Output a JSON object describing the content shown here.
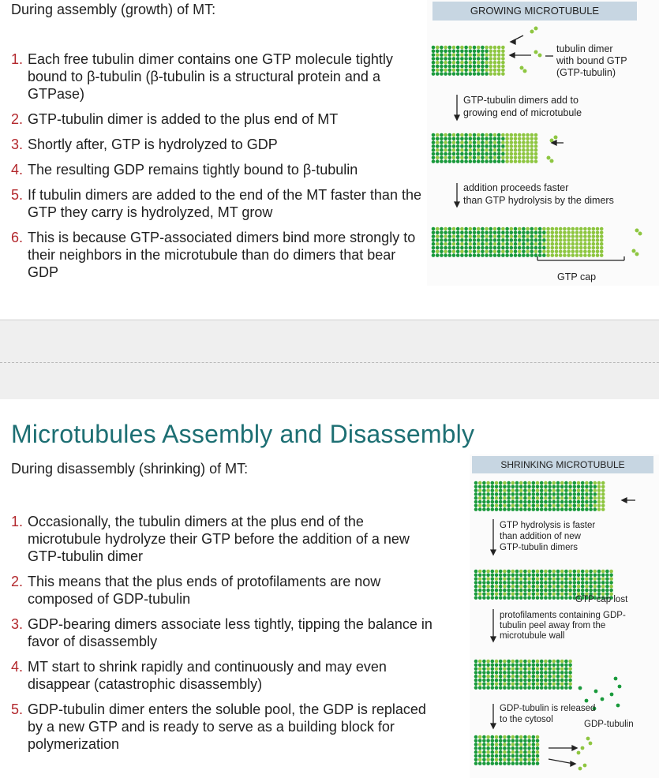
{
  "top_slide": {
    "lead": "During assembly (growth) of MT:",
    "items": [
      {
        "num": "1.",
        "text": "Each free tubulin dimer contains one GTP molecule tightly bound to β-tubulin (β-tubulin is a structural protein and a GTPase)"
      },
      {
        "num": "2.",
        "text": "GTP-tubulin dimer is added to the plus end of MT"
      },
      {
        "num": "3.",
        "text": "Shortly after, GTP is hydrolyzed to GDP"
      },
      {
        "num": "4.",
        "text": "The resulting GDP remains tightly bound to β-tubulin"
      },
      {
        "num": "5.",
        "text": "If tubulin dimers are added to the end of the MT faster than the GTP they carry is hydrolyzed, MT grow"
      },
      {
        "num": "6.",
        "text": "This is because GTP-associated dimers bind more strongly to their neighbors in the microtubule than do dimers that bear GDP"
      }
    ],
    "figure": {
      "header": "GROWING MICROTUBULE",
      "dimer_label_1": "tubulin dimer",
      "dimer_label_2": "with bound GTP",
      "dimer_label_3": "(GTP-tubulin)",
      "step1_line1": "GTP-tubulin dimers add to",
      "step1_line2": "growing end of microtubule",
      "step2_line1": "addition proceeds faster",
      "step2_line2": "than GTP hydrolysis by the dimers",
      "cap_label": "GTP cap"
    }
  },
  "bottom_slide": {
    "title": "Microtubules Assembly and Disassembly",
    "lead": "During disassembly (shrinking) of MT:",
    "items": [
      {
        "num": "1.",
        "text": "Occasionally, the tubulin dimers at the plus end of the microtubule hydrolyze their GTP before the addition of a new GTP-tubulin dimer"
      },
      {
        "num": "2.",
        "text": "This means that the plus ends of protofilaments are now composed of GDP-tubulin"
      },
      {
        "num": "3.",
        "text": "GDP-bearing dimers associate less tightly, tipping the balance in favor of disassembly"
      },
      {
        "num": "4.",
        "text": "MT start to shrink rapidly and continuously and may even disappear (catastrophic disassembly)"
      },
      {
        "num": "5.",
        "text": "GDP-tubulin dimer enters the soluble pool, the GDP is replaced by a new GTP and is ready to serve as a building block for polymerization"
      }
    ],
    "figure": {
      "header": "SHRINKING MICROTUBULE",
      "step1_line1": "GTP hydrolysis is faster",
      "step1_line2": "than addition of new",
      "step1_line3": "GTP-tubulin dimers",
      "cap_lost": "GTP cap lost",
      "step2_line1": "protofilaments containing GDP-",
      "step2_line2": "tubulin peel away from the",
      "step2_line3": "microtubule wall",
      "step3_line1": "GDP-tubulin is released",
      "step3_line2": "to the cytosol",
      "gdp_label": "GDP-tubulin"
    }
  },
  "colors": {
    "dark_green": "#1a9a3c",
    "light_green": "#8ec641",
    "header_blue": "#c7d6e2",
    "title_teal": "#1d6f73",
    "number_red": "#b3282d"
  }
}
